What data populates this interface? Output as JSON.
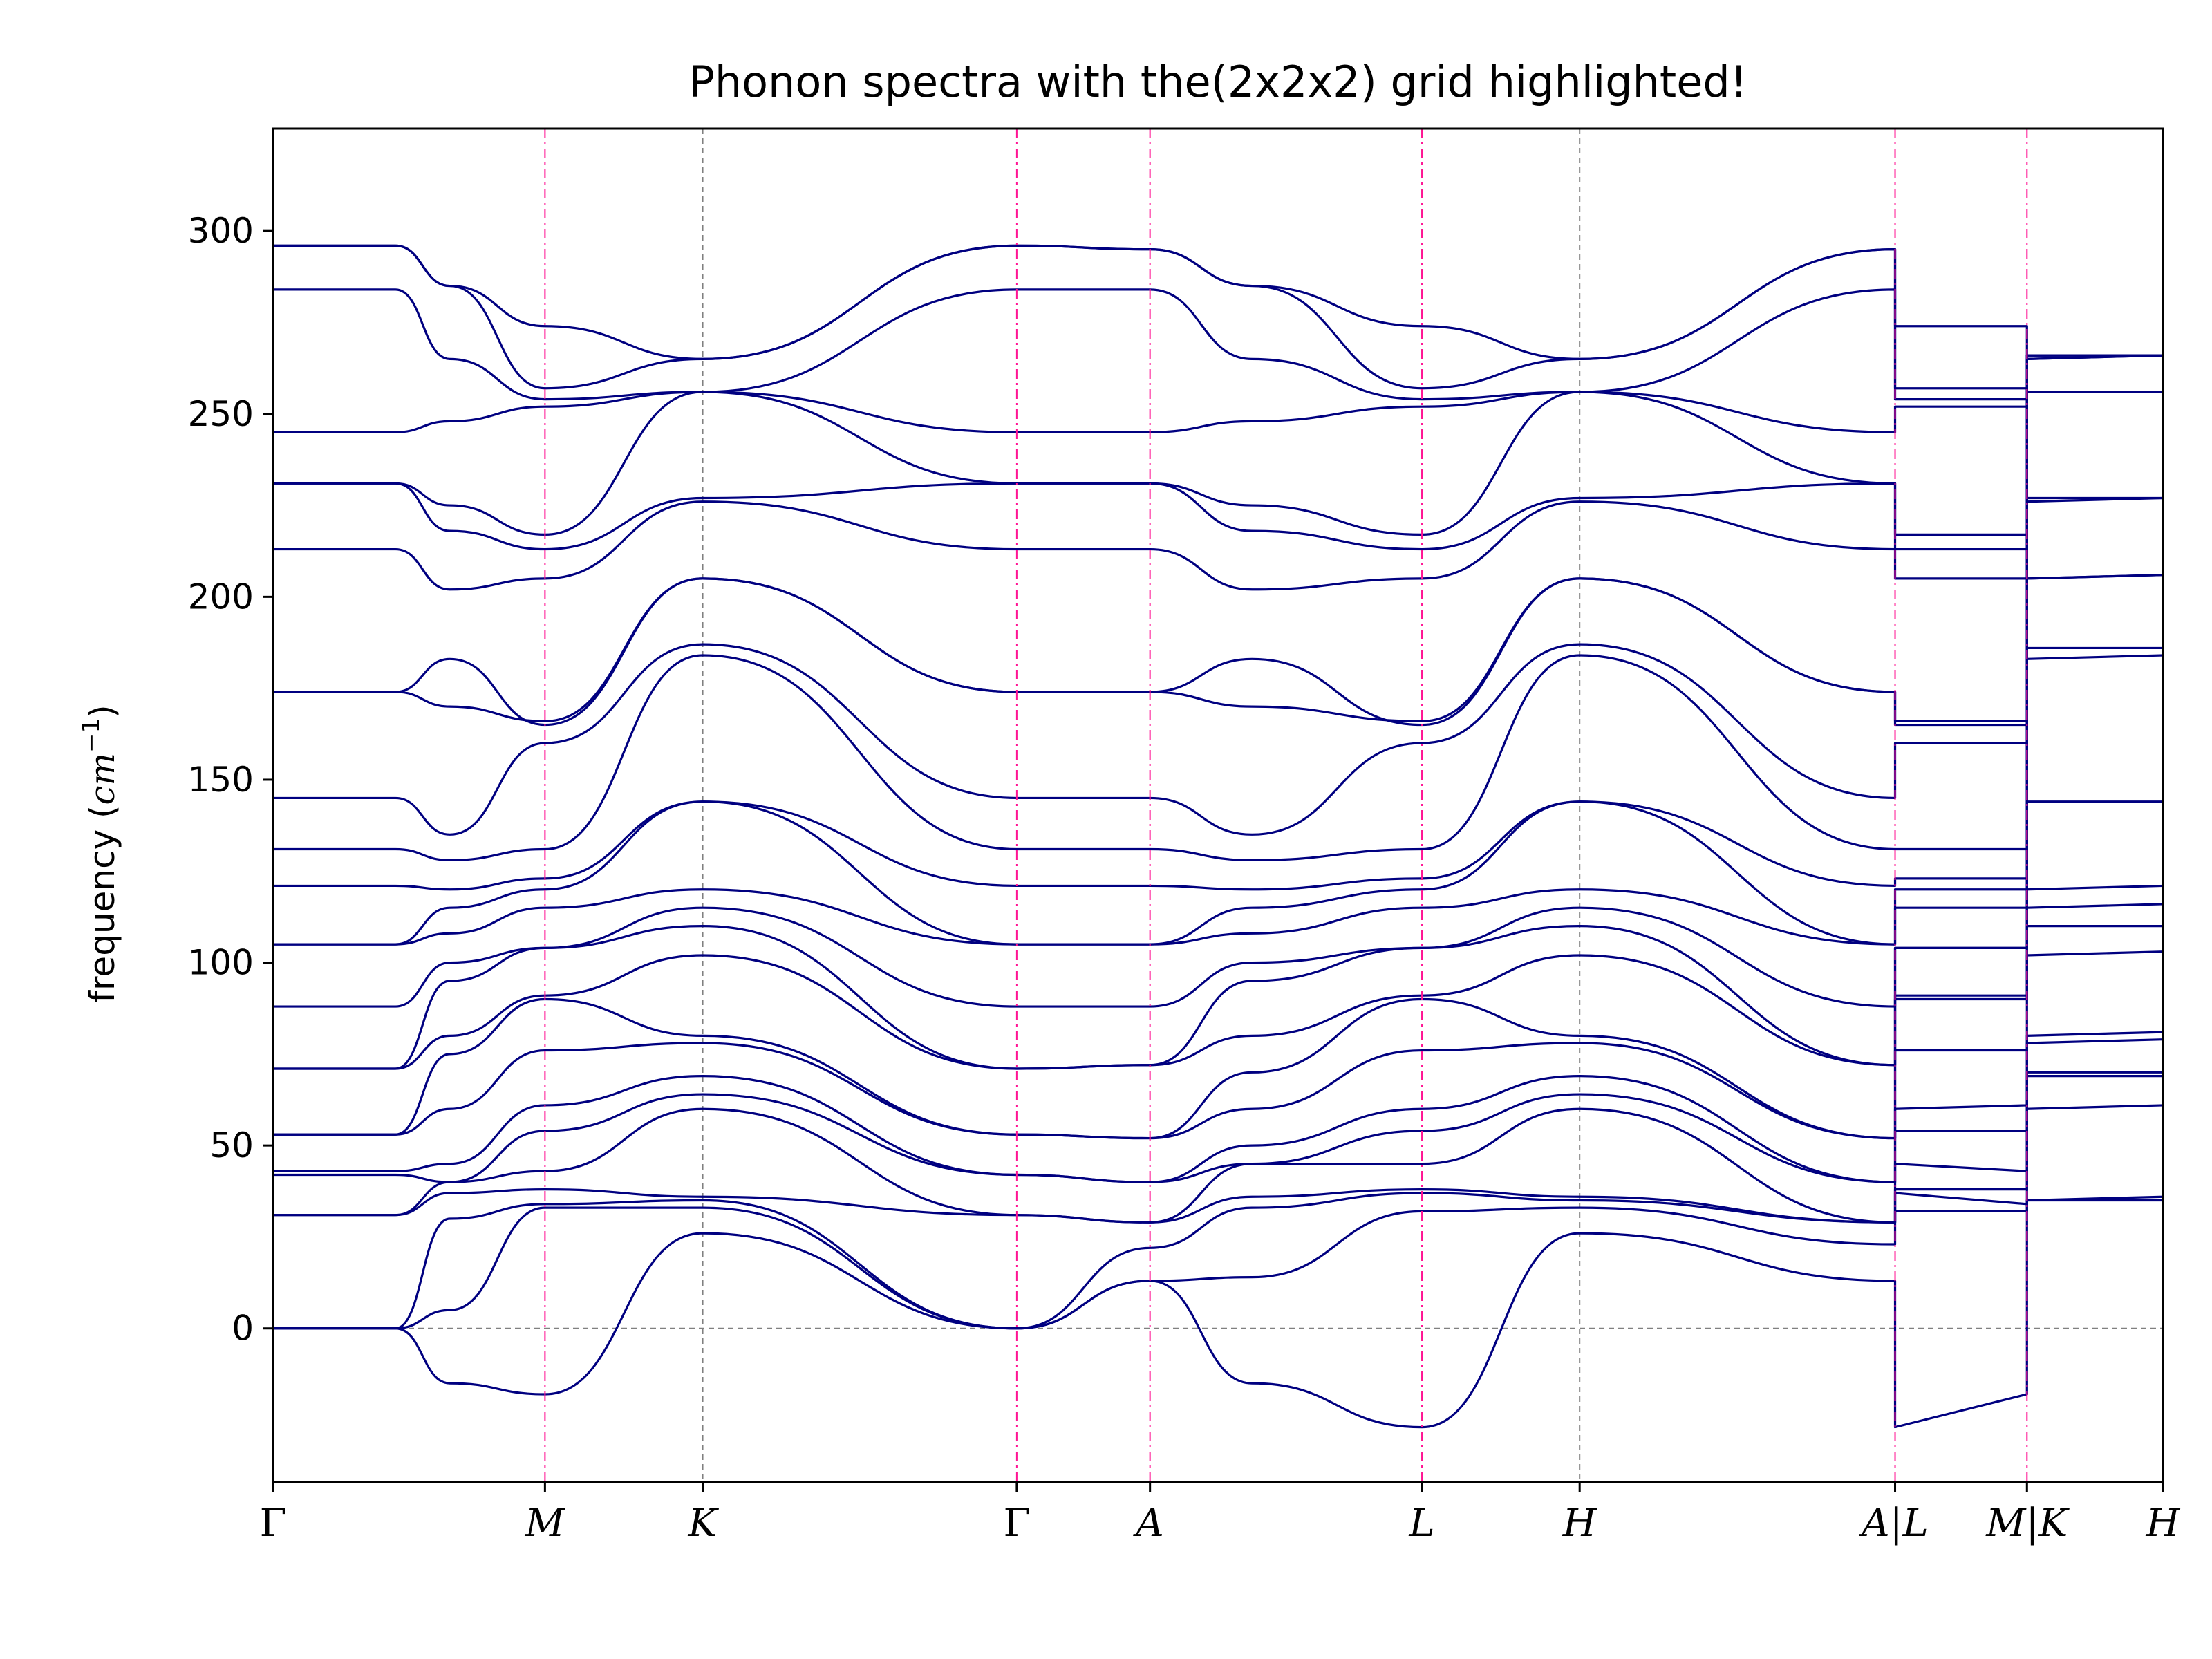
{
  "chart_data": {
    "type": "line",
    "title": "Phonon spectra with the(2x2x2) grid highlighted!",
    "xlabel": "",
    "ylabel": "frequency (cm⁻¹)",
    "ylabel_unit_prefix": "frequency (",
    "ylabel_unit_base": "cm",
    "ylabel_unit_exp": "−1",
    "ylabel_unit_suffix": ")",
    "ylim": [
      -42,
      328
    ],
    "yticks": [
      0,
      50,
      100,
      150,
      200,
      250,
      300
    ],
    "xlim": [
      0,
      13.9
    ],
    "band_color": "#000080",
    "highlight_color": "#ff1493",
    "grid_color": "#808080",
    "kpoints": [
      {
        "label": "Γ",
        "x": 0.0,
        "highlight": false
      },
      {
        "label": "M",
        "x": 2.0,
        "highlight": true
      },
      {
        "label": "K",
        "x": 3.16,
        "highlight": false
      },
      {
        "label": "Γ",
        "x": 5.47,
        "highlight": true
      },
      {
        "label": "A",
        "x": 6.45,
        "highlight": true
      },
      {
        "label": "L",
        "x": 8.45,
        "highlight": true
      },
      {
        "label": "H",
        "x": 9.61,
        "highlight": false
      },
      {
        "label": "A|L",
        "x": 11.93,
        "highlight": true
      },
      {
        "label": "M|K",
        "x": 12.9,
        "highlight": true
      },
      {
        "label": "H",
        "x": 13.9,
        "highlight": false
      }
    ],
    "band_nodes": [
      [
        0.0,
        0.0,
        -15.0,
        -18.0,
        26.0,
        0.0,
        13.0,
        -15.0,
        -27.0,
        26.0,
        13.0,
        -27.0,
        -18.0,
        35.0,
        35.0
      ],
      [
        0.0,
        0.0,
        5.0,
        33.0,
        33.0,
        0.0,
        13.0,
        14.0,
        32.0,
        33.0,
        23.0,
        32.0,
        32.0,
        35.0,
        36.0
      ],
      [
        0.0,
        0.0,
        30.0,
        34.0,
        35.0,
        0.0,
        22.0,
        33.0,
        37.0,
        35.0,
        29.0,
        37.0,
        34.0,
        60.0,
        61.0
      ],
      [
        31.0,
        31.0,
        37.0,
        38.0,
        36.0,
        31.0,
        29.0,
        36.0,
        38.0,
        36.0,
        29.0,
        38.0,
        38.0,
        69.0,
        69.0
      ],
      [
        31.0,
        31.0,
        40.0,
        43.0,
        60.0,
        31.0,
        29.0,
        45.0,
        45.0,
        60.0,
        29.0,
        45.0,
        43.0,
        70.0,
        70.0
      ],
      [
        42.0,
        42.0,
        40.0,
        54.0,
        64.0,
        42.0,
        40.0,
        45.0,
        54.0,
        64.0,
        40.0,
        54.0,
        54.0,
        78.0,
        79.0
      ],
      [
        43.0,
        43.0,
        45.0,
        61.0,
        69.0,
        42.0,
        40.0,
        50.0,
        60.0,
        69.0,
        40.0,
        60.0,
        61.0,
        80.0,
        81.0
      ],
      [
        53.0,
        53.0,
        60.0,
        76.0,
        78.0,
        53.0,
        52.0,
        60.0,
        76.0,
        78.0,
        52.0,
        76.0,
        76.0,
        102.0,
        103.0
      ],
      [
        53.0,
        53.0,
        75.0,
        90.0,
        80.0,
        53.0,
        52.0,
        70.0,
        90.0,
        80.0,
        52.0,
        90.0,
        90.0,
        110.0,
        110.0
      ],
      [
        71.0,
        71.0,
        80.0,
        91.0,
        102.0,
        71.0,
        72.0,
        80.0,
        91.0,
        102.0,
        72.0,
        91.0,
        91.0,
        115.0,
        116.0
      ],
      [
        71.0,
        71.0,
        95.0,
        104.0,
        110.0,
        71.0,
        72.0,
        95.0,
        104.0,
        110.0,
        72.0,
        104.0,
        104.0,
        120.0,
        121.0
      ],
      [
        88.0,
        88.0,
        100.0,
        104.0,
        115.0,
        88.0,
        88.0,
        100.0,
        104.0,
        115.0,
        88.0,
        104.0,
        104.0,
        144.0,
        144.0
      ],
      [
        105.0,
        105.0,
        108.0,
        115.0,
        120.0,
        105.0,
        105.0,
        108.0,
        115.0,
        120.0,
        105.0,
        115.0,
        115.0,
        183.0,
        184.0
      ],
      [
        105.0,
        105.0,
        115.0,
        120.0,
        144.0,
        105.0,
        105.0,
        115.0,
        120.0,
        144.0,
        105.0,
        120.0,
        120.0,
        186.0,
        186.0
      ],
      [
        121.0,
        121.0,
        120.0,
        123.0,
        144.0,
        121.0,
        121.0,
        120.0,
        123.0,
        144.0,
        121.0,
        123.0,
        123.0,
        205.0,
        206.0
      ],
      [
        131.0,
        131.0,
        128.0,
        131.0,
        184.0,
        131.0,
        131.0,
        128.0,
        131.0,
        184.0,
        131.0,
        131.0,
        131.0,
        205.0,
        206.0
      ],
      [
        145.0,
        145.0,
        135.0,
        160.0,
        187.0,
        145.0,
        145.0,
        135.0,
        160.0,
        187.0,
        145.0,
        160.0,
        160.0,
        226.0,
        227.0
      ],
      [
        174.0,
        174.0,
        183.0,
        165.0,
        205.0,
        174.0,
        174.0,
        183.0,
        165.0,
        205.0,
        174.0,
        165.0,
        165.0,
        227.0,
        227.0
      ],
      [
        174.0,
        174.0,
        170.0,
        166.0,
        205.0,
        174.0,
        174.0,
        170.0,
        166.0,
        205.0,
        174.0,
        166.0,
        166.0,
        256.0,
        256.0
      ],
      [
        213.0,
        213.0,
        202.0,
        205.0,
        226.0,
        213.0,
        213.0,
        202.0,
        205.0,
        226.0,
        213.0,
        205.0,
        205.0,
        256.0,
        256.0
      ],
      [
        231.0,
        231.0,
        218.0,
        213.0,
        227.0,
        231.0,
        231.0,
        218.0,
        213.0,
        227.0,
        231.0,
        213.0,
        213.0,
        265.0,
        266.0
      ],
      [
        231.0,
        231.0,
        225.0,
        217.0,
        256.0,
        231.0,
        231.0,
        225.0,
        217.0,
        256.0,
        231.0,
        217.0,
        217.0,
        265.0,
        266.0
      ],
      [
        245.0,
        245.0,
        248.0,
        252.0,
        256.0,
        245.0,
        245.0,
        248.0,
        252.0,
        256.0,
        245.0,
        252.0,
        252.0,
        266.0,
        266.0
      ],
      [
        284.0,
        284.0,
        265.0,
        254.0,
        256.0,
        284.0,
        284.0,
        265.0,
        254.0,
        256.0,
        284.0,
        254.0,
        254.0,
        266.0,
        266.0
      ],
      [
        296.0,
        296.0,
        285.0,
        257.0,
        265.0,
        296.0,
        295.0,
        285.0,
        257.0,
        265.0,
        295.0,
        257.0,
        257.0,
        266.0,
        266.0
      ],
      [
        296.0,
        296.0,
        285.0,
        274.0,
        265.0,
        296.0,
        295.0,
        285.0,
        274.0,
        265.0,
        295.0,
        274.0,
        274.0,
        266.0,
        266.0
      ]
    ]
  }
}
